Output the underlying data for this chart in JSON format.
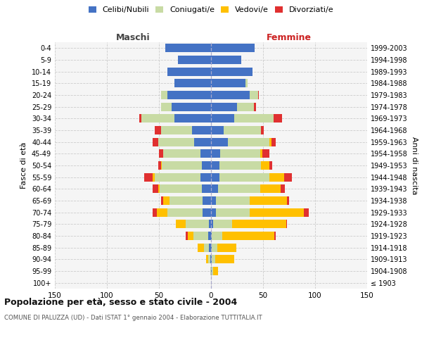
{
  "age_groups": [
    "100+",
    "95-99",
    "90-94",
    "85-89",
    "80-84",
    "75-79",
    "70-74",
    "65-69",
    "60-64",
    "55-59",
    "50-54",
    "45-49",
    "40-44",
    "35-39",
    "30-34",
    "25-29",
    "20-24",
    "15-19",
    "10-14",
    "5-9",
    "0-4"
  ],
  "birth_years": [
    "≤ 1903",
    "1904-1908",
    "1909-1913",
    "1914-1918",
    "1919-1923",
    "1924-1928",
    "1929-1933",
    "1934-1938",
    "1939-1943",
    "1944-1948",
    "1949-1953",
    "1954-1958",
    "1959-1963",
    "1964-1968",
    "1969-1973",
    "1974-1978",
    "1979-1983",
    "1984-1988",
    "1989-1993",
    "1994-1998",
    "1999-2003"
  ],
  "maschi": {
    "celibi": [
      0,
      0,
      1,
      2,
      3,
      2,
      8,
      8,
      9,
      10,
      9,
      10,
      16,
      18,
      35,
      38,
      42,
      35,
      42,
      32,
      44
    ],
    "coniugati": [
      0,
      1,
      2,
      5,
      14,
      22,
      34,
      32,
      40,
      44,
      38,
      36,
      35,
      30,
      32,
      10,
      6,
      0,
      0,
      0,
      0
    ],
    "vedovi": [
      0,
      0,
      2,
      6,
      5,
      10,
      10,
      6,
      2,
      2,
      1,
      0,
      0,
      0,
      0,
      0,
      0,
      0,
      0,
      0,
      0
    ],
    "divorziati": [
      0,
      0,
      0,
      0,
      2,
      0,
      4,
      2,
      5,
      8,
      3,
      4,
      5,
      6,
      2,
      0,
      0,
      0,
      0,
      0,
      0
    ]
  },
  "femmine": {
    "nubili": [
      0,
      1,
      1,
      1,
      1,
      2,
      5,
      5,
      7,
      8,
      8,
      9,
      16,
      12,
      22,
      25,
      37,
      33,
      40,
      29,
      42
    ],
    "coniugate": [
      0,
      1,
      3,
      5,
      10,
      18,
      32,
      32,
      40,
      48,
      40,
      38,
      40,
      36,
      38,
      16,
      8,
      2,
      0,
      0,
      0
    ],
    "vedove": [
      0,
      5,
      18,
      18,
      50,
      52,
      52,
      36,
      20,
      14,
      8,
      2,
      2,
      0,
      0,
      0,
      0,
      0,
      0,
      0,
      0
    ],
    "divorziate": [
      0,
      0,
      0,
      0,
      1,
      1,
      5,
      2,
      4,
      8,
      3,
      7,
      4,
      3,
      8,
      2,
      1,
      0,
      0,
      0,
      0
    ]
  },
  "colors": {
    "celibi": "#4472c4",
    "coniugati": "#c8dba4",
    "vedovi": "#ffc000",
    "divorziati": "#e03030"
  },
  "xlim": 150,
  "title": "Popolazione per età, sesso e stato civile - 2004",
  "subtitle": "COMUNE DI PALUZZA (UD) - Dati ISTAT 1° gennaio 2004 - Elaborazione TUTTITALIA.IT",
  "ylabel_left": "Fasce di età",
  "ylabel_right": "Anni di nascita",
  "xlabel_left": "Maschi",
  "xlabel_right": "Femmine",
  "legend_labels": [
    "Celibi/Nubili",
    "Coniugati/e",
    "Vedovi/e",
    "Divorziati/e"
  ],
  "bg_color": "#f5f5f5"
}
